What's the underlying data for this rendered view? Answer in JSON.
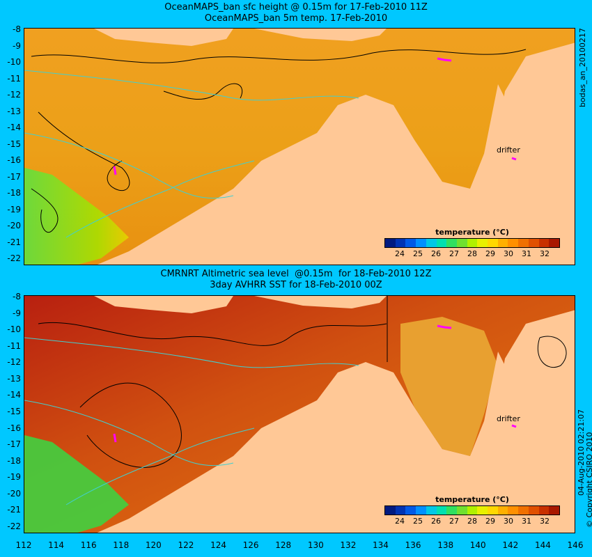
{
  "top_panel": {
    "title_line1": "OceanMAPS_ban sfc height @ 0.15m for 17-Feb-2010 11Z",
    "title_line2": "OceanMAPS_ban 5m temp. 17-Feb-2010",
    "side_label": "bodas_an_20100217",
    "drifter_label": "drifter",
    "legend_title": "temperature (°C)"
  },
  "bottom_panel": {
    "title_line1": "CMRNRT Altimetric sea level  @0.15m  for 18-Feb-2010 12Z",
    "title_line2": "3day AVHRR SST for 18-Feb-2010 00Z",
    "side_label_date": "04-Aug-2010 02:21:07",
    "side_label_copyright": "© Copyright CSIRO 2010",
    "drifter_label": "drifter",
    "legend_title": "temperature (°C)"
  },
  "y_ticks": [
    "-8",
    "-9",
    "-10",
    "-11",
    "-12",
    "-13",
    "-14",
    "-15",
    "-16",
    "-17",
    "-18",
    "-19",
    "-20",
    "-21",
    "-22"
  ],
  "x_ticks": [
    "112",
    "114",
    "116",
    "118",
    "120",
    "122",
    "124",
    "126",
    "128",
    "130",
    "132",
    "134",
    "136",
    "138",
    "140",
    "142",
    "144",
    "146"
  ],
  "colorbar": {
    "tick_labels": [
      "24",
      "25",
      "26",
      "27",
      "28",
      "29",
      "30",
      "31",
      "32"
    ],
    "colors": [
      "#001a80",
      "#0033b3",
      "#0059e6",
      "#0090ff",
      "#00c8e6",
      "#00e0b0",
      "#30e060",
      "#70e030",
      "#b0f000",
      "#e8f000",
      "#ffd800",
      "#ffb000",
      "#ff9000",
      "#f07000",
      "#e05000",
      "#c83000",
      "#a81800"
    ]
  },
  "colors": {
    "background": "#00c8ff",
    "land": "#ffc896",
    "contour": "#000000",
    "isobath": "#40d0d0",
    "drifter": "#ff00ff"
  }
}
